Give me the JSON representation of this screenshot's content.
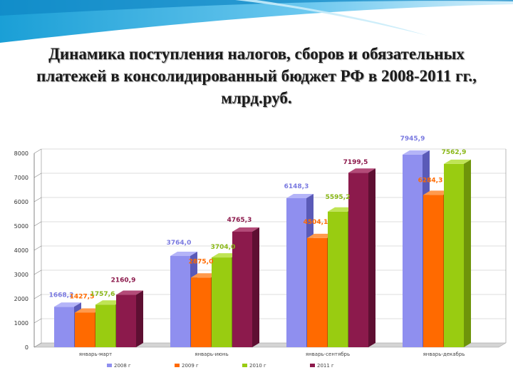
{
  "title": "Динамика поступления налогов, сборов и обязательных платежей в консолидированный бюджет РФ в 2008-2011 гг., млрд.руб.",
  "chart_data": {
    "type": "bar",
    "categories": [
      "январь-март",
      "январь-июнь",
      "январь-сентябрь",
      "январь-декабрь"
    ],
    "series": [
      {
        "name": "2008 г",
        "color": "#8f8fef",
        "side": "#5a5ab8",
        "top": "#b4b4f8",
        "labelColor": "#7a7ae0",
        "values": [
          1668.2,
          3764.0,
          6148.3,
          7945.9
        ],
        "labels": [
          "1668,2",
          "3764,0",
          "6148,3",
          "7945,9"
        ]
      },
      {
        "name": "2009 г",
        "color": "#ff6a00",
        "side": "#c04e00",
        "top": "#ff9a4d",
        "labelColor": "#ff6a00",
        "values": [
          1427.5,
          2875.0,
          4504.1,
          6284.3
        ],
        "labels": [
          "1427,5",
          "2875,0",
          "4504,1",
          "6284,3"
        ]
      },
      {
        "name": "2010 г",
        "color": "#99cc11",
        "side": "#6e940a",
        "top": "#bfe455",
        "labelColor": "#8ab818",
        "values": [
          1757.6,
          3704.0,
          5595.2,
          7562.9
        ],
        "labels": [
          "1757,6",
          "3704,0",
          "5595,2",
          "7562,9"
        ]
      },
      {
        "name": "2011 г",
        "color": "#8c1a4c",
        "side": "#5e0f32",
        "top": "#b34b78",
        "labelColor": "#8c1a4c",
        "values": [
          2160.9,
          4765.3,
          7199.5,
          null
        ],
        "labels": [
          "2160,9",
          "4765,3",
          "7199,5",
          ""
        ]
      }
    ],
    "yticks": [
      "0",
      "1000",
      "2000",
      "3000",
      "4000",
      "5000",
      "6000",
      "7000",
      "8000"
    ],
    "ylim": [
      0,
      8000
    ],
    "grid": true,
    "legend": "bottom"
  }
}
